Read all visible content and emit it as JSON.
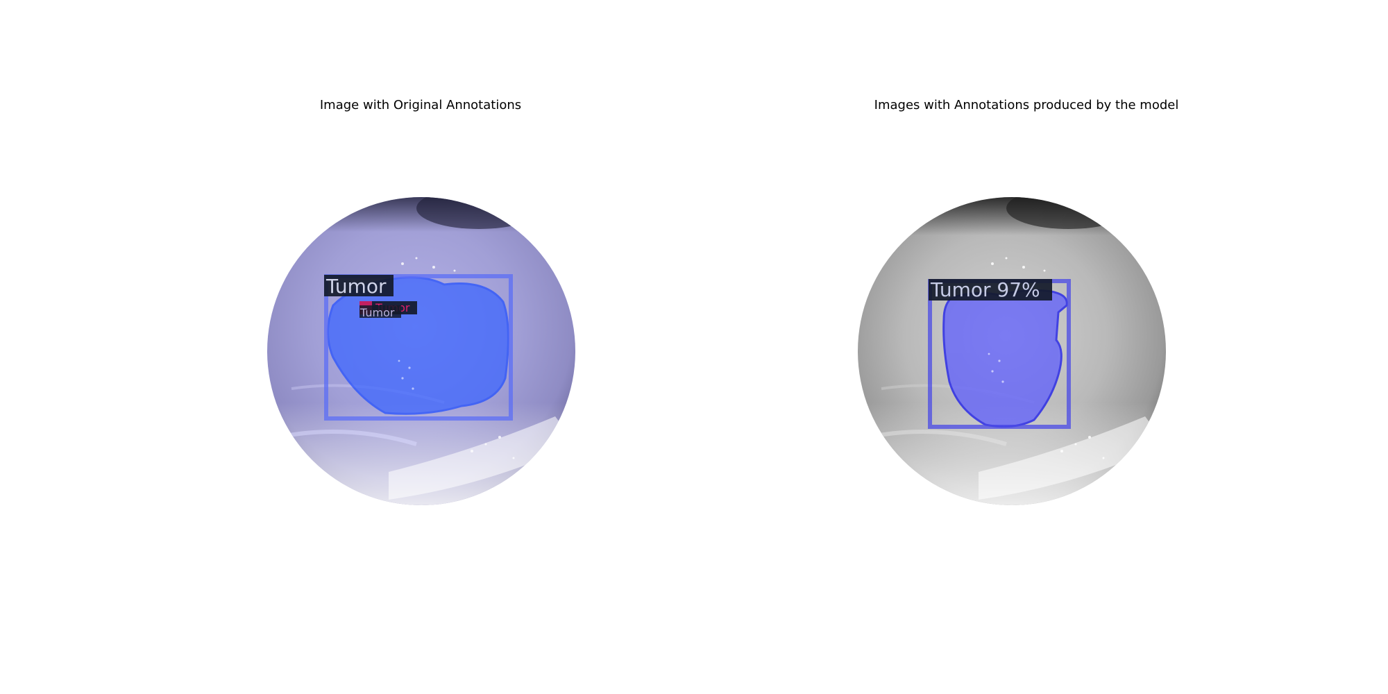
{
  "figure": {
    "panels": [
      {
        "title": "Image with Original Annotations",
        "image_style": "color",
        "annotations": [
          {
            "label": "Tumor",
            "color": "#2f5bff"
          },
          {
            "label": "Tumor",
            "color": "#e0206a"
          },
          {
            "label": "Tumor",
            "color": "#6a5acd"
          }
        ]
      },
      {
        "title": "Images with Annotations produced by the model",
        "image_style": "grayscale",
        "annotations": [
          {
            "label": "Tumor 97%",
            "color": "#2a2aff"
          }
        ]
      }
    ]
  }
}
